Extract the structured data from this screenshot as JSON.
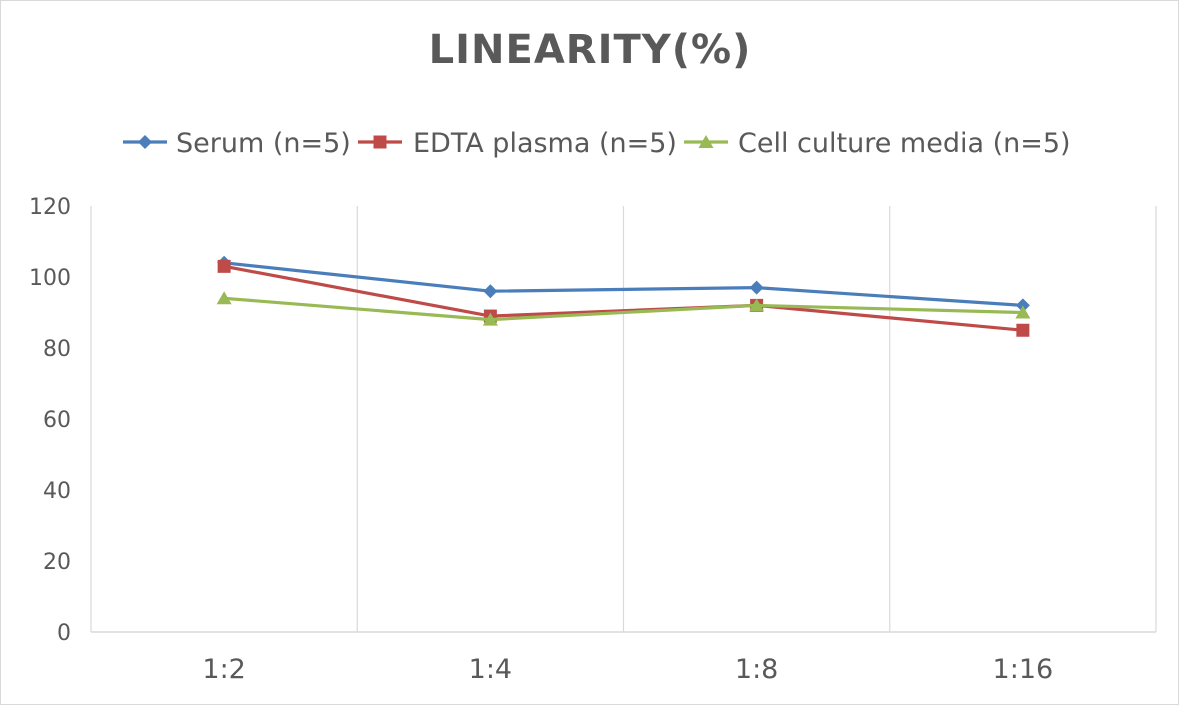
{
  "chart_data": {
    "type": "line",
    "title": "LINEARITY(%)",
    "categories": [
      "1:2",
      "1:4",
      "1:8",
      "1:16"
    ],
    "series": [
      {
        "name": "Serum (n=5)",
        "values": [
          104,
          96,
          97,
          92
        ],
        "color": "#4a7ebb",
        "marker": "diamond"
      },
      {
        "name": "EDTA plasma (n=5)",
        "values": [
          103,
          89,
          92,
          85
        ],
        "color": "#be4b48",
        "marker": "square"
      },
      {
        "name": "Cell culture media (n=5)",
        "values": [
          94,
          88,
          92,
          90
        ],
        "color": "#98b954",
        "marker": "triangle"
      }
    ],
    "ylim": [
      0,
      120
    ],
    "yticks": [
      0,
      20,
      40,
      60,
      80,
      100,
      120
    ],
    "xlabel": "",
    "ylabel": "",
    "grid": "vertical",
    "legend": "top"
  }
}
